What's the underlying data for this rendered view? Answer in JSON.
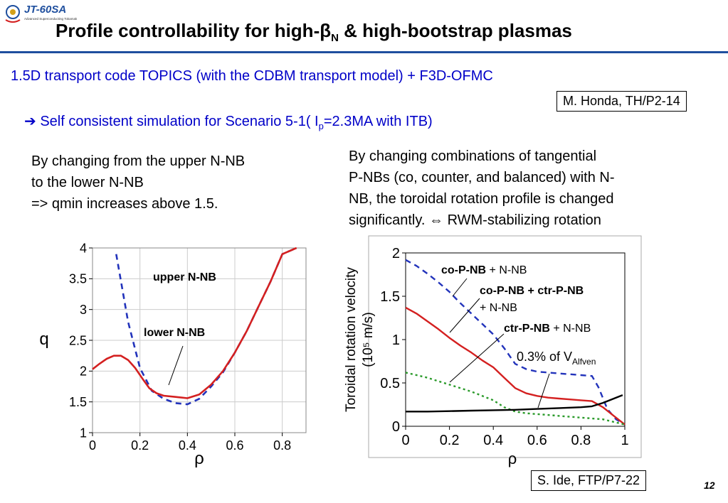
{
  "header": {
    "logo_text": "JT-60SA",
    "logo_subtitle": "Advanced Superconducting Tokamak",
    "title_prefix": "Profile controllability for high-",
    "title_beta": "β",
    "title_beta_sub": "N",
    "title_suffix": " & high-bootstrap plasmas",
    "accent_color": "#1f4f9e"
  },
  "subtitle": "1.5D transport code TOPICS (with the CDBM transport model) + F3D-OFMC",
  "ref_top": "M. Honda, TH/P2-14",
  "bullet": {
    "arrow": "➔",
    "text_before": " Self consistent simulation for Scenario 5-1( I",
    "text_sub": "p",
    "text_after": "=2.3MA with ITB)",
    "color": "#0000c8"
  },
  "left_text": {
    "line1": "By changing from the upper N-NB",
    "line2": "to the lower N-NB",
    "line3": "=>  qmin increases above 1.5."
  },
  "right_text": {
    "line1": "By changing combinations of tangential",
    "line2": "P-NBs (co, counter, and balanced) with N-",
    "line3": "NB, the toroidal rotation profile is changed",
    "line4": "significantly. ⇔ RWM-stabilizing rotation"
  },
  "chart_data": [
    {
      "type": "line",
      "title": "",
      "xlabel": "ρ",
      "ylabel": "q",
      "xlim": [
        0,
        0.9
      ],
      "ylim": [
        1,
        4
      ],
      "x_ticks": [
        "0",
        "0.2",
        "0.4",
        "0.6",
        "0.8"
      ],
      "y_ticks": [
        "1",
        "1.5",
        "2",
        "2.5",
        "3",
        "3.5",
        "4"
      ],
      "grid": true,
      "annotations": [
        "upper N-NB",
        "lower N-NB"
      ],
      "series": [
        {
          "name": "upper N-NB",
          "color": "#2233bb",
          "style": "dashed",
          "x": [
            0.1,
            0.15,
            0.2,
            0.25,
            0.3,
            0.35,
            0.4,
            0.45,
            0.5,
            0.55,
            0.6,
            0.65,
            0.7,
            0.75,
            0.8,
            0.86
          ],
          "y": [
            3.9,
            2.8,
            2.05,
            1.68,
            1.55,
            1.48,
            1.46,
            1.55,
            1.75,
            1.98,
            2.3,
            2.65,
            3.05,
            3.45,
            3.9,
            4.0
          ]
        },
        {
          "name": "lower N-NB",
          "color": "#d42020",
          "style": "solid",
          "x": [
            0,
            0.03,
            0.06,
            0.09,
            0.12,
            0.15,
            0.18,
            0.21,
            0.24,
            0.27,
            0.3,
            0.35,
            0.4,
            0.45,
            0.5,
            0.55,
            0.6,
            0.65,
            0.7,
            0.75,
            0.8,
            0.86
          ],
          "y": [
            2.03,
            2.12,
            2.2,
            2.25,
            2.25,
            2.18,
            2.05,
            1.88,
            1.72,
            1.64,
            1.6,
            1.58,
            1.56,
            1.62,
            1.78,
            2.0,
            2.3,
            2.65,
            3.05,
            3.45,
            3.9,
            4.0
          ]
        }
      ]
    },
    {
      "type": "line",
      "title": "",
      "xlabel": "ρ",
      "ylabel": "Toroidal rotation velocity",
      "ylabel_unit": "(10⁵ m/s)",
      "xlim": [
        0,
        1
      ],
      "ylim": [
        0,
        2
      ],
      "x_ticks": [
        "0",
        "0.2",
        "0.4",
        "0.6",
        "0.8",
        "1"
      ],
      "y_ticks": [
        "0",
        "0.5",
        "1",
        "1.5",
        "2"
      ],
      "grid": false,
      "series": [
        {
          "name": "co-P-NB + N-NB",
          "label_bold": "co-P-NB",
          "label_rest": " + N-NB",
          "color": "#2233bb",
          "style": "dashed",
          "x": [
            0,
            0.05,
            0.1,
            0.15,
            0.2,
            0.25,
            0.3,
            0.35,
            0.4,
            0.45,
            0.5,
            0.55,
            0.6,
            0.65,
            0.7,
            0.75,
            0.8,
            0.85,
            0.88,
            0.92,
            0.96,
            1.0
          ],
          "y": [
            1.92,
            1.85,
            1.76,
            1.66,
            1.55,
            1.42,
            1.3,
            1.18,
            1.06,
            0.9,
            0.72,
            0.66,
            0.63,
            0.62,
            0.61,
            0.6,
            0.59,
            0.58,
            0.45,
            0.2,
            0.08,
            0.02
          ]
        },
        {
          "name": "co-P-NB + ctr-P-NB + N-NB",
          "label_bold": "co-P-NB + ctr-P-NB",
          "label_rest": "+ N-NB",
          "color": "#d42020",
          "style": "solid",
          "x": [
            0,
            0.05,
            0.1,
            0.15,
            0.2,
            0.25,
            0.3,
            0.35,
            0.4,
            0.45,
            0.5,
            0.55,
            0.6,
            0.65,
            0.7,
            0.75,
            0.8,
            0.85,
            0.9,
            0.95,
            1.0
          ],
          "y": [
            1.37,
            1.3,
            1.21,
            1.12,
            1.02,
            0.93,
            0.85,
            0.76,
            0.68,
            0.56,
            0.44,
            0.38,
            0.35,
            0.33,
            0.32,
            0.31,
            0.3,
            0.29,
            0.22,
            0.12,
            0.02
          ]
        },
        {
          "name": "ctr-P-NB + N-NB",
          "label_bold": "ctr-P-NB",
          "label_rest": " + N-NB",
          "color": "#2a9a2a",
          "style": "dotted",
          "x": [
            0,
            0.05,
            0.1,
            0.15,
            0.2,
            0.25,
            0.3,
            0.35,
            0.4,
            0.45,
            0.5,
            0.55,
            0.6,
            0.65,
            0.7,
            0.75,
            0.8,
            0.85,
            0.9,
            0.95,
            1.0
          ],
          "y": [
            0.62,
            0.59,
            0.56,
            0.52,
            0.48,
            0.44,
            0.4,
            0.35,
            0.3,
            0.22,
            0.17,
            0.15,
            0.14,
            0.13,
            0.12,
            0.11,
            0.1,
            0.09,
            0.08,
            0.05,
            0.02
          ]
        },
        {
          "name": "0.3% of V_Alfven",
          "label_prefix": "0.3% of V",
          "label_sub": "Alfven",
          "color": "#000000",
          "style": "solid",
          "x": [
            0,
            0.1,
            0.2,
            0.3,
            0.4,
            0.5,
            0.6,
            0.7,
            0.8,
            0.85,
            0.9,
            0.95,
            0.99
          ],
          "y": [
            0.17,
            0.17,
            0.175,
            0.18,
            0.185,
            0.19,
            0.2,
            0.21,
            0.22,
            0.23,
            0.27,
            0.32,
            0.36
          ]
        }
      ]
    }
  ],
  "ref_bottom": "S. Ide, FTP/P7-22",
  "page_number": "12"
}
